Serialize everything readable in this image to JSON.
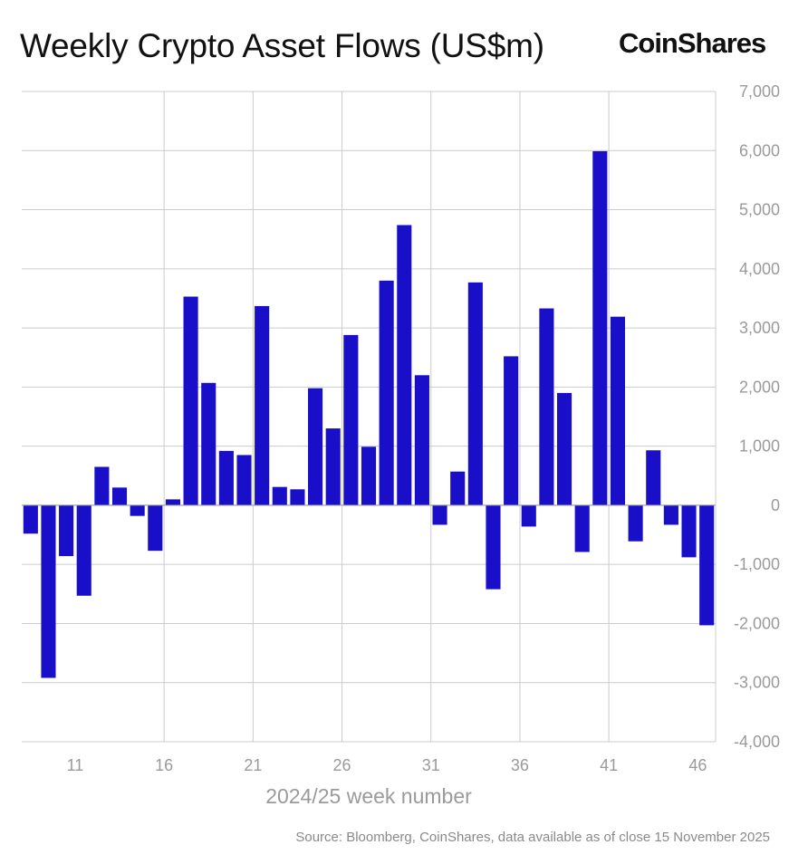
{
  "title": "Weekly Crypto Asset Flows (US$m)",
  "brand": "CoinShares",
  "source": "Source: Bloomberg, CoinShares, data available as of close 15 November 2025",
  "colors": {
    "bar": "#1a0fc8",
    "grid": "#cccccc",
    "text": "#111111",
    "muted": "#9a9a9a"
  },
  "chart_data": {
    "type": "bar",
    "title": "Weekly Crypto Asset Flows (US$m)",
    "xlabel": "2024/25 week number",
    "ylabel": "",
    "ylim": [
      -4000,
      7000
    ],
    "yticks": [
      -4000,
      -3000,
      -2000,
      -1000,
      0,
      1000,
      2000,
      3000,
      4000,
      5000,
      6000,
      7000
    ],
    "ytick_labels": [
      "-4,000",
      "-3,000",
      "-2,000",
      "-1,000",
      "0",
      "1,000",
      "2,000",
      "3,000",
      "4,000",
      "5,000",
      "6,000",
      "7,000"
    ],
    "xticks": [
      "11",
      "16",
      "21",
      "26",
      "31",
      "36",
      "41",
      "46"
    ],
    "grid": true,
    "legend": "none",
    "categories": [
      "8",
      "9",
      "10",
      "11",
      "12",
      "13",
      "14",
      "15",
      "16",
      "17",
      "18",
      "19",
      "20",
      "21",
      "22",
      "23",
      "24",
      "25",
      "26",
      "27",
      "28",
      "29",
      "30",
      "31",
      "32",
      "33",
      "34",
      "35",
      "36",
      "37",
      "38",
      "39",
      "40",
      "41",
      "42",
      "43",
      "44",
      "45",
      "46"
    ],
    "values": [
      -480,
      -2920,
      -860,
      -1530,
      650,
      300,
      -180,
      -770,
      100,
      3530,
      2070,
      920,
      850,
      3370,
      310,
      270,
      1980,
      1300,
      2880,
      990,
      3800,
      4740,
      2200,
      -330,
      570,
      3770,
      -1420,
      2520,
      -360,
      3330,
      1900,
      -790,
      5990,
      3190,
      -610,
      930,
      -330,
      -880,
      -2030
    ]
  }
}
